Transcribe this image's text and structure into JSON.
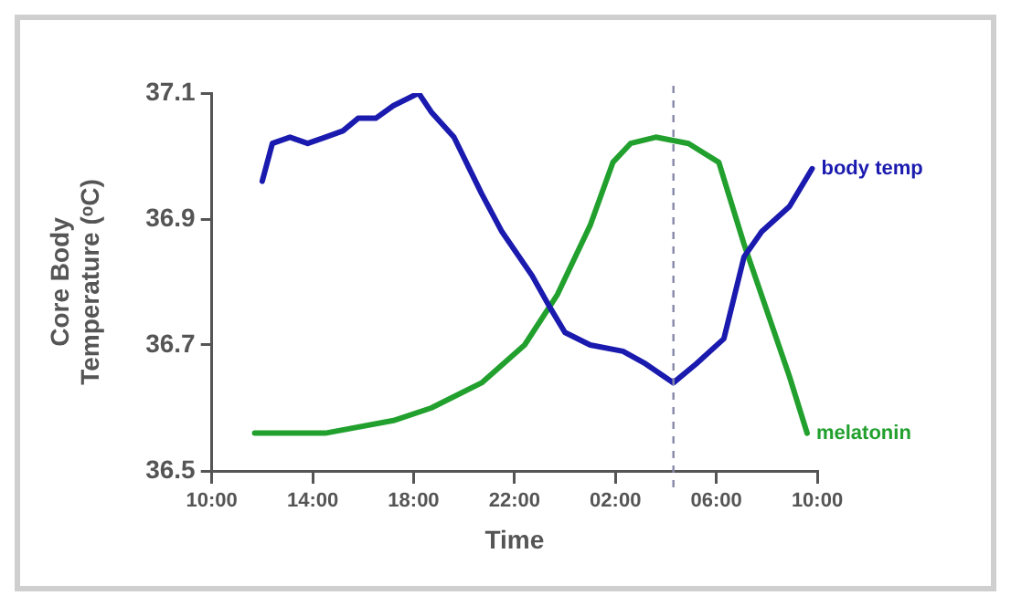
{
  "chart_data": {
    "type": "line",
    "xlabel": "Time",
    "ylabel": "Core Body Temperature (ᵒC)",
    "xlim": [
      "2000-01-01T10:00",
      "2000-01-02T10:00"
    ],
    "xticks": [
      {
        "value": "2000-01-01T10:00",
        "label": "10:00"
      },
      {
        "value": "2000-01-01T14:00",
        "label": "14:00"
      },
      {
        "value": "2000-01-01T18:00",
        "label": "18:00"
      },
      {
        "value": "2000-01-01T22:00",
        "label": "22:00"
      },
      {
        "value": "2000-01-02T02:00",
        "label": "02:00"
      },
      {
        "value": "2000-01-02T06:00",
        "label": "06:00"
      },
      {
        "value": "2000-01-02T10:00",
        "label": "10:00"
      }
    ],
    "ylim": [
      36.5,
      37.1
    ],
    "yticks": [
      36.5,
      36.7,
      36.9,
      37.1
    ],
    "grid": false,
    "legend": false,
    "marker": "none",
    "line_style": "solid",
    "series": [
      {
        "name": "body temp",
        "color": "#1a1aaf",
        "x": [
          "2000-01-01T12:00",
          "2000-01-01T12:24",
          "2000-01-01T13:06",
          "2000-01-01T13:48",
          "2000-01-01T14:30",
          "2000-01-01T15:12",
          "2000-01-01T15:48",
          "2000-01-01T16:30",
          "2000-01-01T17:12",
          "2000-01-01T18:12",
          "2000-01-01T18:42",
          "2000-01-01T19:36",
          "2000-01-01T20:42",
          "2000-01-01T21:30",
          "2000-01-01T22:42",
          "2000-01-01T23:24",
          "2000-01-02T00:00",
          "2000-01-02T01:00",
          "2000-01-02T02:18",
          "2000-01-02T03:12",
          "2000-01-02T04:18",
          "2000-01-02T05:12",
          "2000-01-02T06:18",
          "2000-01-02T07:06",
          "2000-01-02T07:48",
          "2000-01-02T08:54",
          "2000-01-02T09:48"
        ],
        "values": [
          36.96,
          37.02,
          37.03,
          37.02,
          37.03,
          37.04,
          37.06,
          37.06,
          37.08,
          37.1,
          37.07,
          37.03,
          36.94,
          36.88,
          36.81,
          36.76,
          36.72,
          36.7,
          36.69,
          36.67,
          36.64,
          36.67,
          36.71,
          36.84,
          36.88,
          36.92,
          36.98
        ]
      },
      {
        "name": "melatonin",
        "color": "#22a02e",
        "x": [
          "2000-01-01T11:42",
          "2000-01-01T14:30",
          "2000-01-01T17:12",
          "2000-01-01T18:42",
          "2000-01-01T20:42",
          "2000-01-01T22:24",
          "2000-01-01T23:42",
          "2000-01-02T01:00",
          "2000-01-02T01:54",
          "2000-01-02T02:36",
          "2000-01-02T03:36",
          "2000-01-02T04:54",
          "2000-01-02T06:06",
          "2000-01-02T07:06",
          "2000-01-02T08:54",
          "2000-01-02T09:36"
        ],
        "values": [
          36.56,
          36.56,
          36.58,
          36.6,
          36.64,
          36.7,
          36.78,
          36.89,
          36.99,
          37.02,
          37.03,
          37.02,
          36.99,
          36.86,
          36.65,
          36.56
        ]
      }
    ],
    "ref_lines": [
      {
        "axis": "x",
        "value": "2000-01-02T04:18",
        "color": "#8888aa",
        "line_style": "dashed"
      }
    ]
  }
}
